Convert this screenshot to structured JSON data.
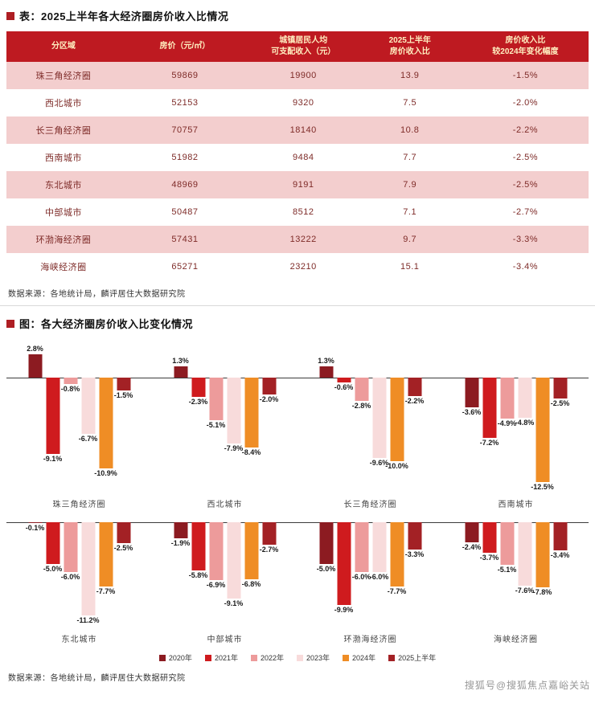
{
  "page": {
    "watermark": "搜狐号@搜狐焦点嘉峪关站"
  },
  "table_section": {
    "title": "表：2025上半年各大经济圈房价收入比情况",
    "columns": [
      [
        "分区域"
      ],
      [
        "房价（元/㎡）"
      ],
      [
        "城镇居民人均",
        "可支配收入（元）"
      ],
      [
        "2025上半年",
        "房价收入比"
      ],
      [
        "房价收入比",
        "较2024年变化幅度"
      ]
    ],
    "rows": [
      [
        "珠三角经济圈",
        "59869",
        "19900",
        "13.9",
        "-1.5%"
      ],
      [
        "西北城市",
        "52153",
        "9320",
        "7.5",
        "-2.0%"
      ],
      [
        "长三角经济圈",
        "70757",
        "18140",
        "10.8",
        "-2.2%"
      ],
      [
        "西南城市",
        "51982",
        "9484",
        "7.7",
        "-2.5%"
      ],
      [
        "东北城市",
        "48969",
        "9191",
        "7.9",
        "-2.5%"
      ],
      [
        "中部城市",
        "50487",
        "8512",
        "7.1",
        "-2.7%"
      ],
      [
        "环渤海经济圈",
        "57431",
        "13222",
        "9.7",
        "-3.3%"
      ],
      [
        "海峡经济圈",
        "65271",
        "23210",
        "15.1",
        "-3.4%"
      ]
    ],
    "source": "数据来源：各地统计局，麟评居住大数据研究院"
  },
  "chart_section": {
    "title": "图：各大经济圈房价收入比变化情况",
    "source": "数据来源：各地统计局，麟评居住大数据研究院"
  },
  "chart_data": {
    "type": "bar",
    "title": "各大经济圈房价收入比变化情况",
    "value_unit": "%",
    "legend_position": "bottom",
    "grid": false,
    "ylim": [
      -13,
      3
    ],
    "series_names": [
      "2020年",
      "2021年",
      "2022年",
      "2023年",
      "2024年",
      "2025上半年"
    ],
    "series_colors": [
      "#8C1B21",
      "#CF1B1E",
      "#ED9B9B",
      "#F8DBDB",
      "#EF8D25",
      "#A32125"
    ],
    "groups": [
      {
        "label": "珠三角经济圈",
        "values": [
          2.8,
          -9.1,
          -0.8,
          -6.7,
          -10.9,
          -1.5
        ]
      },
      {
        "label": "西北城市",
        "values": [
          1.3,
          -2.3,
          -5.1,
          -7.9,
          -8.4,
          -2.0
        ]
      },
      {
        "label": "长三角经济圈",
        "values": [
          1.3,
          -0.6,
          -2.8,
          -9.6,
          -10.0,
          -2.2
        ]
      },
      {
        "label": "西南城市",
        "values": [
          -3.6,
          -7.2,
          -4.9,
          -4.8,
          -12.5,
          -2.5
        ]
      },
      {
        "label": "东北城市",
        "values": [
          -0.1,
          -5.0,
          -6.0,
          -11.2,
          -7.7,
          -2.5
        ]
      },
      {
        "label": "中部城市",
        "values": [
          -1.9,
          -5.8,
          -6.9,
          -9.1,
          -6.8,
          -2.7
        ]
      },
      {
        "label": "环渤海经济圈",
        "values": [
          -5.0,
          -9.9,
          -6.0,
          -6.0,
          -7.7,
          -3.3
        ]
      },
      {
        "label": "海峡经济圈",
        "values": [
          -2.4,
          -3.7,
          -5.1,
          -7.6,
          -7.8,
          -3.4
        ]
      }
    ]
  }
}
